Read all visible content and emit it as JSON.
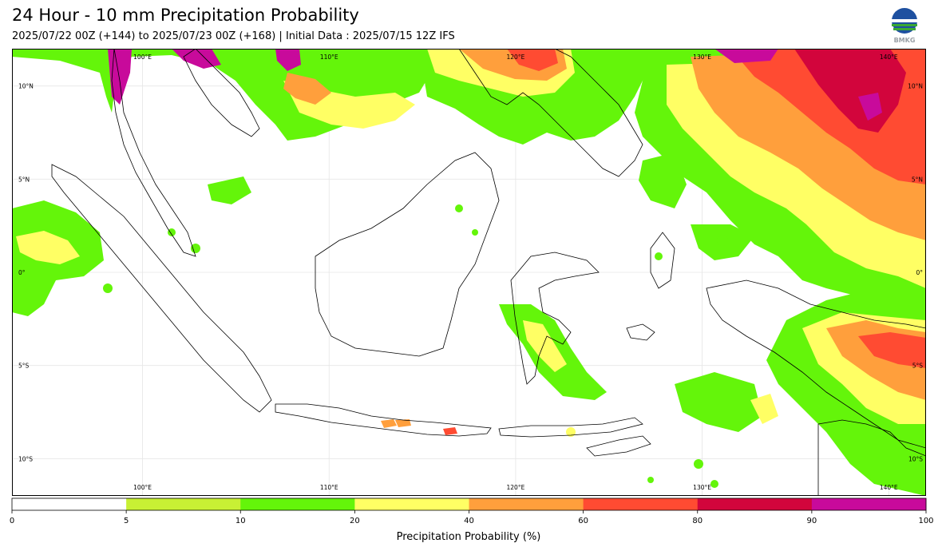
{
  "header": {
    "title": "24 Hour - 10 mm Precipitation Probability",
    "subtitle": "2025/07/22 00Z (+144) to 2025/07/23 00Z (+168) | Initial Data : 2025/07/15 12Z IFS",
    "logo_text": "BMKG"
  },
  "map": {
    "lon_range": [
      93,
      142
    ],
    "lat_range": [
      -12,
      12
    ],
    "lon_labels": [
      "100°E",
      "110°E",
      "120°E",
      "130°E",
      "140°E"
    ],
    "lat_labels": [
      "10°N",
      "5°N",
      "0°",
      "5°S",
      "10°S"
    ],
    "lon_values": [
      100,
      110,
      120,
      130,
      140
    ],
    "lat_values": [
      10,
      5,
      0,
      -5,
      -10
    ]
  },
  "colorbar": {
    "label": "Precipitation Probability (%)",
    "ticks": [
      "0",
      "5",
      "10",
      "20",
      "40",
      "60",
      "80",
      "90",
      "100"
    ],
    "colors": [
      "#ffffff",
      "#c8f034",
      "#64f50a",
      "#ffff64",
      "#ff9f3c",
      "#ff4b32",
      "#d2053c",
      "#c80a9b"
    ]
  },
  "colors": {
    "c5": "#c8f034",
    "c10": "#64f50a",
    "c20": "#ffff64",
    "c40": "#ff9f3c",
    "c60": "#ff4b32",
    "c80": "#d2053c",
    "c90": "#c80a9b"
  }
}
